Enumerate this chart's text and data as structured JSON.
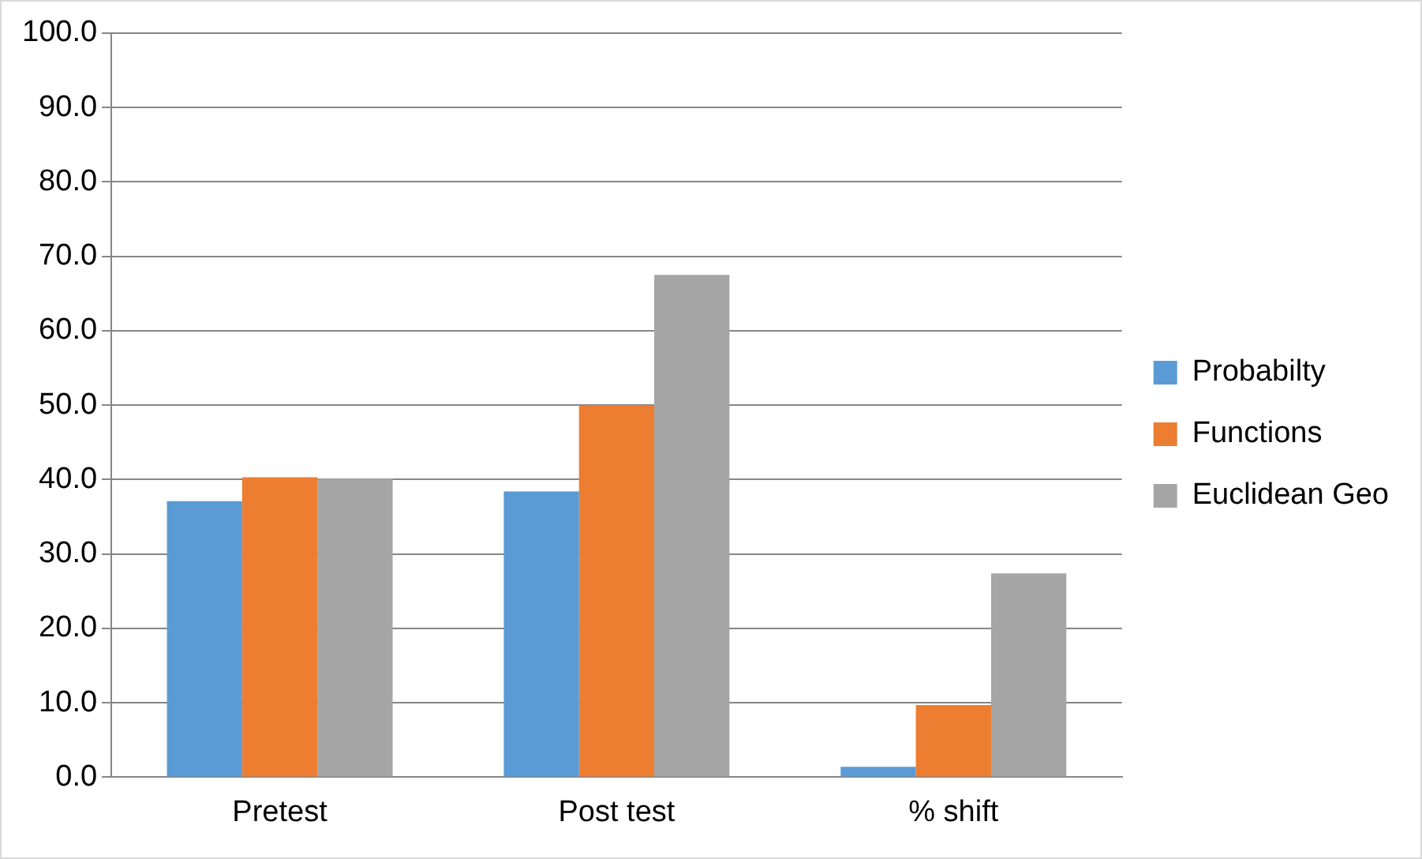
{
  "chart_data": {
    "type": "bar",
    "categories": [
      "Pretest",
      "Post test",
      "% shift"
    ],
    "series": [
      {
        "name": "Probabilty",
        "color": "#5b9bd5",
        "values": [
          37.1,
          38.4,
          1.4
        ]
      },
      {
        "name": "Functions",
        "color": "#ed7d31",
        "values": [
          40.3,
          50.0,
          9.7
        ]
      },
      {
        "name": "Euclidean Geo",
        "color": "#a5a5a5",
        "values": [
          40.1,
          67.5,
          27.4
        ]
      }
    ],
    "ylim": [
      0,
      100
    ],
    "yticks": [
      {
        "value": 0,
        "label": "0.0"
      },
      {
        "value": 10,
        "label": "10.0"
      },
      {
        "value": 20,
        "label": "20.0"
      },
      {
        "value": 30,
        "label": "30.0"
      },
      {
        "value": 40,
        "label": "40.0"
      },
      {
        "value": 50,
        "label": "50.0"
      },
      {
        "value": 60,
        "label": "60.0"
      },
      {
        "value": 70,
        "label": "70.0"
      },
      {
        "value": 80,
        "label": "80.0"
      },
      {
        "value": 90,
        "label": "90.0"
      },
      {
        "value": 100,
        "label": "100.0"
      }
    ],
    "grid": "y",
    "legend": "right"
  }
}
